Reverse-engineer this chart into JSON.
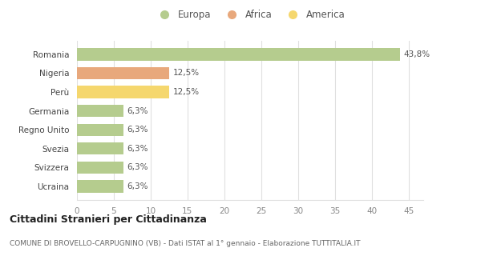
{
  "categories": [
    "Ucraina",
    "Svizzera",
    "Svezia",
    "Regno Unito",
    "Germania",
    "Perù",
    "Nigeria",
    "Romania"
  ],
  "values": [
    6.3,
    6.3,
    6.3,
    6.3,
    6.3,
    12.5,
    12.5,
    43.8
  ],
  "bar_colors": [
    "#b5cc8e",
    "#b5cc8e",
    "#b5cc8e",
    "#b5cc8e",
    "#b5cc8e",
    "#f5d76e",
    "#e8a87c",
    "#b5cc8e"
  ],
  "bar_labels": [
    "6,3%",
    "6,3%",
    "6,3%",
    "6,3%",
    "6,3%",
    "12,5%",
    "12,5%",
    "43,8%"
  ],
  "legend_labels": [
    "Europa",
    "Africa",
    "America"
  ],
  "legend_colors": [
    "#b5cc8e",
    "#e8a87c",
    "#f5d76e"
  ],
  "title": "Cittadini Stranieri per Cittadinanza",
  "subtitle": "COMUNE DI BROVELLO-CARPUGNINO (VB) - Dati ISTAT al 1° gennaio - Elaborazione TUTTITALIA.IT",
  "xlim": [
    0,
    47
  ],
  "xticks": [
    0,
    5,
    10,
    15,
    20,
    25,
    30,
    35,
    40,
    45
  ],
  "background_color": "#ffffff",
  "grid_color": "#e0e0e0"
}
